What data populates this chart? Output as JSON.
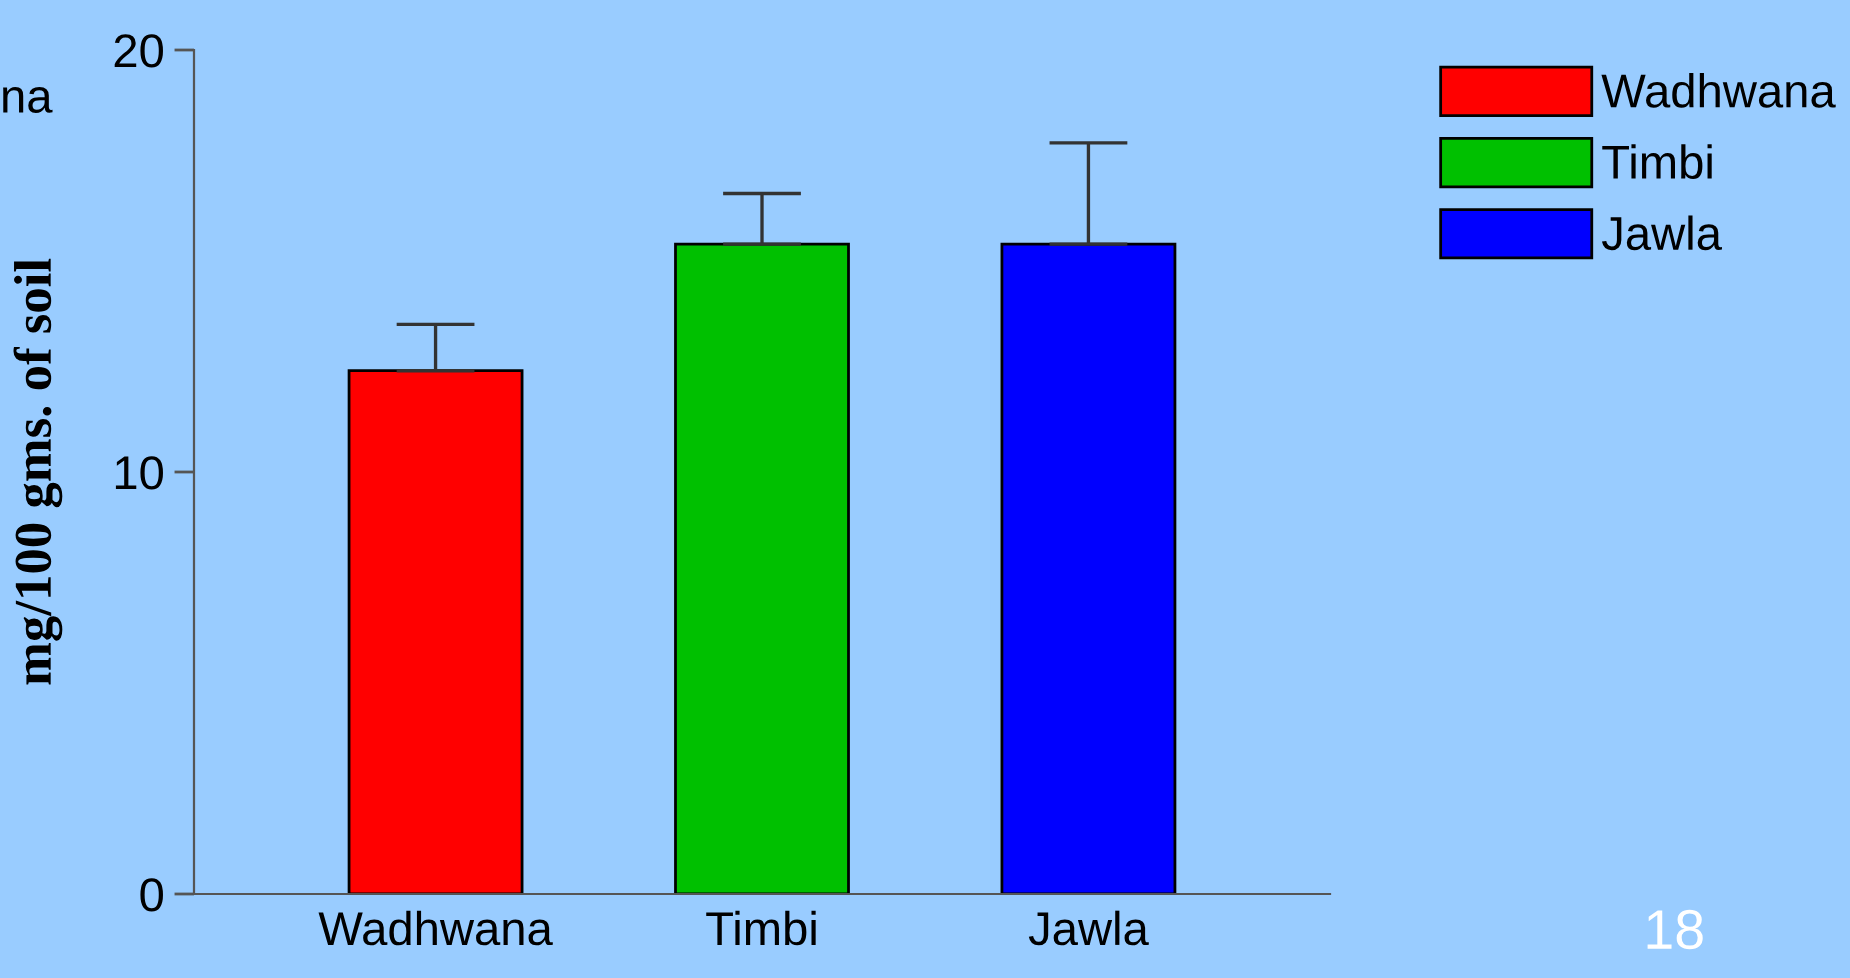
{
  "chart_data": {
    "type": "bar",
    "ylabel": "mg/100 gms. of soil",
    "categories": [
      "Wadhwana",
      "Timbi",
      "Jawla"
    ],
    "series": [
      {
        "name": "Wadhwana",
        "color": "#ff0000",
        "values": [
          12.4,
          null,
          null
        ],
        "errors": [
          1.1,
          null,
          null
        ]
      },
      {
        "name": "Timbi",
        "color": "#00c000",
        "values": [
          null,
          15.4,
          null
        ],
        "errors": [
          null,
          1.2,
          null
        ]
      },
      {
        "name": "Jawla",
        "color": "#0000ff",
        "values": [
          null,
          null,
          15.4
        ],
        "errors": [
          null,
          null,
          2.4
        ]
      }
    ],
    "ylim": [
      0,
      20
    ],
    "yticks": [
      0,
      10,
      20
    ],
    "grid": false,
    "legend": "right",
    "annotations": [
      "na",
      "18"
    ]
  }
}
